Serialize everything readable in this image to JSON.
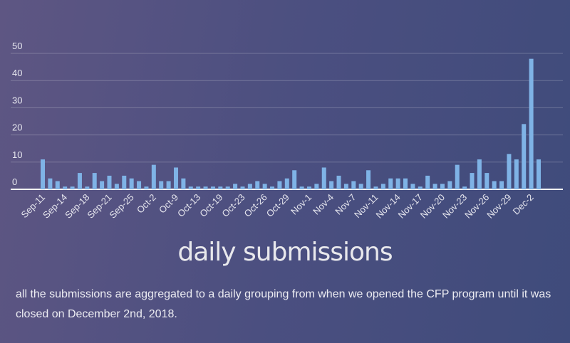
{
  "chart_data": {
    "type": "bar",
    "title": "daily submissions",
    "subtitle": "all the submissions are aggregated to a daily grouping from when we opened the CFP program until it was closed on December 2nd, 2018.",
    "categories": [
      "Sep-11",
      null,
      null,
      "Sep-14",
      null,
      null,
      "Sep-18",
      null,
      null,
      "Sep-21",
      null,
      null,
      "Sep-25",
      null,
      null,
      "Oct-2",
      null,
      null,
      "Oct-9",
      null,
      null,
      "Oct-13",
      null,
      null,
      "Oct-19",
      null,
      null,
      "Oct-23",
      null,
      null,
      "Oct-26",
      null,
      null,
      "Oct-29",
      null,
      null,
      "Nov-1",
      null,
      null,
      "Nov-4",
      null,
      null,
      "Nov-7",
      null,
      null,
      "Nov-11",
      null,
      null,
      "Nov-14",
      null,
      null,
      "Nov-17",
      null,
      null,
      "Nov-20",
      null,
      null,
      "Nov-23",
      null,
      null,
      "Nov-26",
      null,
      null,
      "Nov-29",
      null,
      null,
      "Dec-2",
      null
    ],
    "values": [
      11,
      4,
      3,
      1,
      1,
      6,
      1,
      6,
      3,
      5,
      2,
      5,
      4,
      3,
      1,
      9,
      3,
      3,
      8,
      4,
      1,
      1,
      1,
      1,
      1,
      1,
      2,
      1,
      2,
      3,
      2,
      1,
      3,
      4,
      7,
      1,
      1,
      2,
      8,
      3,
      5,
      2,
      3,
      2,
      7,
      1,
      2,
      4,
      4,
      4,
      2,
      1,
      5,
      2,
      2,
      3,
      9,
      1,
      6,
      11,
      6,
      3,
      3,
      13,
      11,
      24,
      48,
      11
    ],
    "color": "#7fb3e6",
    "ylim": [
      0,
      50
    ],
    "yticks": [
      0,
      10,
      20,
      30,
      40,
      50
    ],
    "grid": true
  }
}
